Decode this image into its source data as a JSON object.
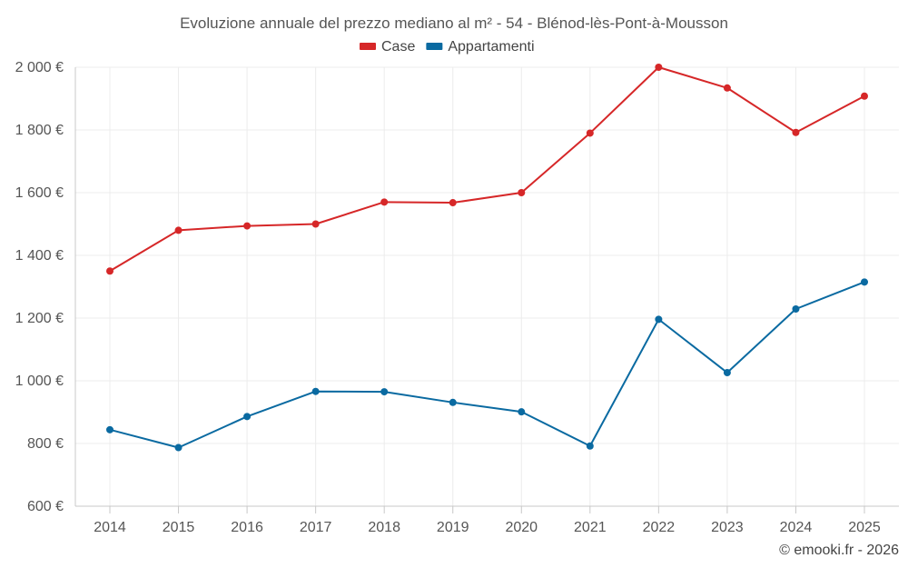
{
  "chart_data": {
    "type": "line",
    "title": "Evoluzione annuale del prezzo mediano al m² - 54 - Blénod-lès-Pont-à-Mousson",
    "categories": [
      "2014",
      "2015",
      "2016",
      "2017",
      "2018",
      "2019",
      "2020",
      "2021",
      "2022",
      "2023",
      "2024",
      "2025"
    ],
    "series": [
      {
        "name": "Case",
        "color": "#d62728",
        "values": [
          1350,
          1480,
          1494,
          1500,
          1570,
          1568,
          1600,
          1790,
          2000,
          1934,
          1792,
          1908
        ]
      },
      {
        "name": "Appartamenti",
        "color": "#0a6aa1",
        "values": [
          844,
          787,
          886,
          966,
          965,
          931,
          901,
          792,
          1196,
          1026,
          1229,
          1315
        ]
      }
    ],
    "ylim": [
      600,
      2000
    ],
    "yticks": [
      600,
      800,
      1000,
      1200,
      1400,
      1600,
      1800,
      2000
    ],
    "ytick_labels": [
      "600 €",
      "800 €",
      "1 000 €",
      "1 200 €",
      "1 400 €",
      "1 600 €",
      "1 800 €",
      "2 000 €"
    ],
    "xlabel": "",
    "ylabel": "",
    "legend_position": "top-center",
    "grid": true
  },
  "credit": "© emooki.fr - 2026"
}
